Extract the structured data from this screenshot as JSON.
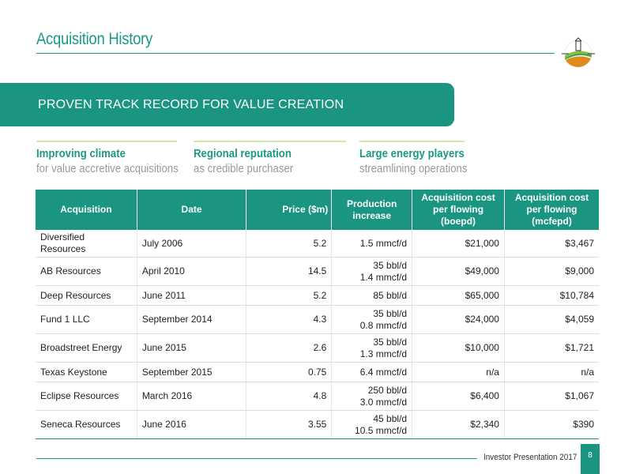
{
  "header": {
    "title": "Acquisition History"
  },
  "banner": {
    "text": "PROVEN TRACK RECORD FOR VALUE CREATION"
  },
  "pillars": [
    {
      "heading": "Improving climate",
      "sub": "for value accretive acquisitions"
    },
    {
      "heading": "Regional reputation",
      "sub": "as credible purchaser"
    },
    {
      "heading": "Large energy players",
      "sub": "streamlining operations"
    }
  ],
  "table": {
    "headers": [
      "Acquisition",
      "Date",
      "Price ($m)",
      "Production increase",
      "Acquisition cost per flowing (boepd)",
      "Acquisition cost per flowing (mcfepd)"
    ],
    "rows": [
      {
        "acquisition": "Diversified Resources",
        "date": "July 2006",
        "price": "5.2",
        "production": [
          "1.5 mmcf/d"
        ],
        "boepd": "$21,000",
        "mcfepd": "$3,467"
      },
      {
        "acquisition": "AB Resources",
        "date": "April 2010",
        "price": "14.5",
        "production": [
          "35 bbl/d",
          "1.4 mmcf/d"
        ],
        "boepd": "$49,000",
        "mcfepd": "$9,000"
      },
      {
        "acquisition": "Deep Resources",
        "date": "June 2011",
        "price": "5.2",
        "production": [
          "85 bbl/d"
        ],
        "boepd": "$65,000",
        "mcfepd": "$10,784"
      },
      {
        "acquisition": "Fund 1 LLC",
        "date": "September 2014",
        "price": "4.3",
        "production": [
          "35 bbl/d",
          "0.8 mmcf/d"
        ],
        "boepd": "$24,000",
        "mcfepd": "$4,059"
      },
      {
        "acquisition": "Broadstreet Energy",
        "date": "June 2015",
        "price": "2.6",
        "production": [
          "35 bbl/d",
          "1.3 mmcf/d"
        ],
        "boepd": "$10,000",
        "mcfepd": "$1,721"
      },
      {
        "acquisition": "Texas Keystone",
        "date": "September 2015",
        "price": "0.75",
        "production": [
          "6.4 mmcf/d"
        ],
        "boepd": "n/a",
        "mcfepd": "n/a"
      },
      {
        "acquisition": "Eclipse Resources",
        "date": "March 2016",
        "price": "4.8",
        "production": [
          "250 bbl/d",
          "3.0 mmcf/d"
        ],
        "boepd": "$6,400",
        "mcfepd": "$1,067"
      },
      {
        "acquisition": "Seneca Resources",
        "date": "June 2016",
        "price": "3.55",
        "production": [
          "45 bbl/d",
          "10.5 mmcf/d"
        ],
        "boepd": "$2,340",
        "mcfepd": "$390"
      }
    ]
  },
  "footer": {
    "text": "Investor Presentation 2017",
    "page": "8"
  },
  "colors": {
    "accent": "#1a9582",
    "pillar_rule": "#d7e8a6",
    "muted_text": "#999999"
  }
}
